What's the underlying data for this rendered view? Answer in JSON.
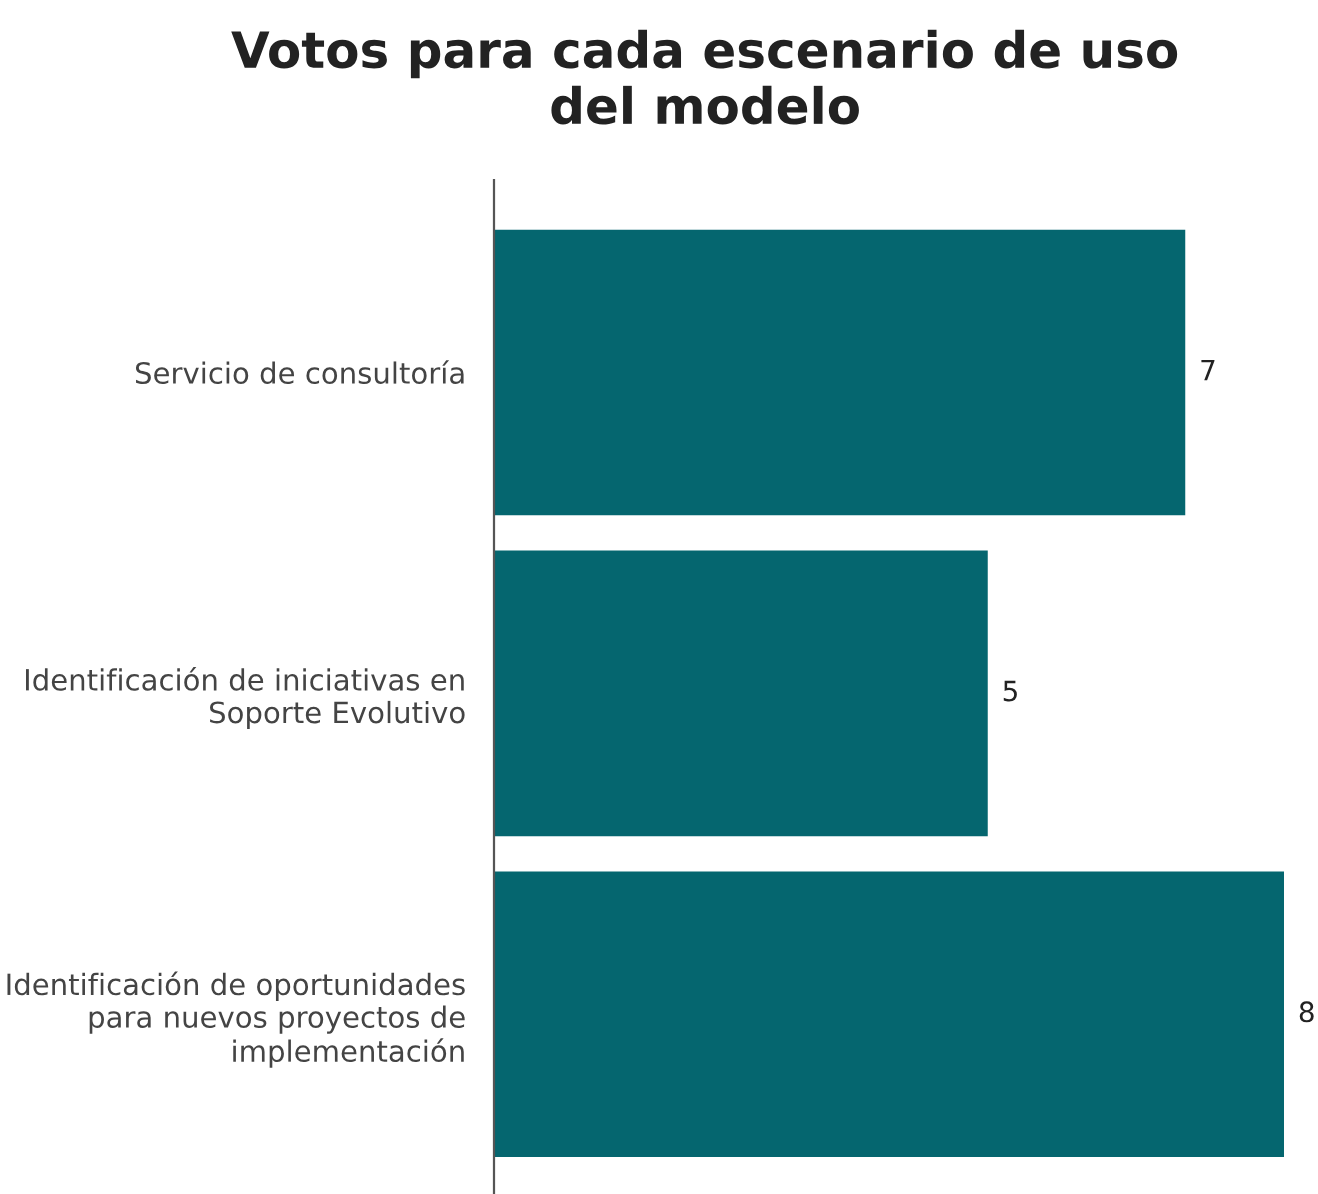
{
  "chart_data": {
    "type": "bar",
    "orientation": "horizontal",
    "title": "Votos para cada escenario de uso\ndel modelo",
    "categories": [
      "Servicio de consultoría",
      "Identificación de iniciativas en\nSoporte Evolutivo",
      "Identificación de oportunidades\npara nuevos proyectos de\nimplementación"
    ],
    "values": [
      7,
      5,
      8
    ],
    "color": "#05666f",
    "data_labels": true,
    "grid": false,
    "legend": false
  }
}
